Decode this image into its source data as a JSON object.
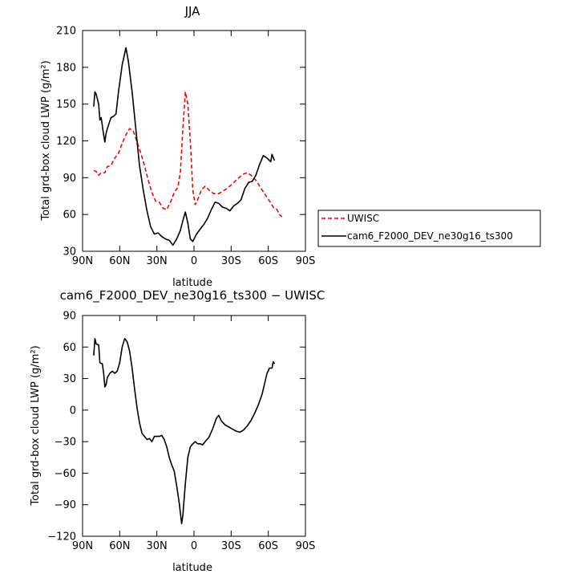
{
  "chart_data": [
    {
      "type": "line",
      "title": "JJA",
      "xlabel": "latitude",
      "ylabel": "Total grd-box cloud LWP (g/m²)",
      "xlim": [
        90,
        -90
      ],
      "ylim": [
        30,
        210
      ],
      "x_ticks": [
        90,
        60,
        30,
        0,
        -30,
        -60,
        -90
      ],
      "x_tick_labels": [
        "90N",
        "60N",
        "30N",
        "0",
        "30S",
        "60S",
        "90S"
      ],
      "y_ticks": [
        30,
        60,
        90,
        120,
        150,
        180,
        210
      ],
      "y_tick_labels": [
        "30",
        "60",
        "90",
        "120",
        "150",
        "180",
        "210"
      ],
      "legend_position": "right",
      "series": [
        {
          "name": "UWISC",
          "color": "#ff0000",
          "dash": "dashed",
          "points": [
            [
              81,
              96
            ],
            [
              79,
              95
            ],
            [
              77,
              92
            ],
            [
              75,
              94
            ],
            [
              72,
              94
            ],
            [
              70,
              99
            ],
            [
              67,
              100
            ],
            [
              64,
              106
            ],
            [
              61,
              110
            ],
            [
              58,
              118
            ],
            [
              55,
              125
            ],
            [
              52,
              130
            ],
            [
              49,
              128
            ],
            [
              46,
              119
            ],
            [
              43,
              110
            ],
            [
              40,
              100
            ],
            [
              37,
              88
            ],
            [
              34,
              78
            ],
            [
              31,
              71
            ],
            [
              28,
              70
            ],
            [
              25,
              65
            ],
            [
              22,
              64
            ],
            [
              19,
              70
            ],
            [
              16,
              78
            ],
            [
              13,
              82
            ],
            [
              11,
              95
            ],
            [
              9,
              130
            ],
            [
              7,
              160
            ],
            [
              5,
              150
            ],
            [
              3,
              120
            ],
            [
              1,
              80
            ],
            [
              -1,
              68
            ],
            [
              -3,
              72
            ],
            [
              -6,
              80
            ],
            [
              -9,
              83
            ],
            [
              -12,
              80
            ],
            [
              -16,
              77
            ],
            [
              -20,
              77
            ],
            [
              -25,
              80
            ],
            [
              -30,
              84
            ],
            [
              -35,
              89
            ],
            [
              -40,
              93
            ],
            [
              -43,
              94
            ],
            [
              -46,
              92
            ],
            [
              -50,
              88
            ],
            [
              -53,
              83
            ],
            [
              -57,
              77
            ],
            [
              -61,
              71
            ],
            [
              -64,
              66
            ],
            [
              -67,
              64
            ],
            [
              -69,
              60
            ],
            [
              -71,
              58
            ]
          ]
        },
        {
          "name": "cam6_F2000_DEV_ne30g16_ts300",
          "color": "#000000",
          "dash": "solid",
          "points": [
            [
              81,
              148
            ],
            [
              80,
              160
            ],
            [
              79,
              158
            ],
            [
              77,
              150
            ],
            [
              76,
              137
            ],
            [
              75,
              139
            ],
            [
              74,
              132
            ],
            [
              73,
              125
            ],
            [
              72,
              119
            ],
            [
              71,
              126
            ],
            [
              70,
              130
            ],
            [
              69,
              133
            ],
            [
              67,
              139
            ],
            [
              65,
              140
            ],
            [
              63,
              142
            ],
            [
              61,
              160
            ],
            [
              58,
              182
            ],
            [
              55,
              196
            ],
            [
              53,
              185
            ],
            [
              50,
              160
            ],
            [
              47,
              130
            ],
            [
              44,
              100
            ],
            [
              41,
              80
            ],
            [
              38,
              63
            ],
            [
              35,
              50
            ],
            [
              32,
              44
            ],
            [
              29,
              45
            ],
            [
              26,
              42
            ],
            [
              23,
              40
            ],
            [
              20,
              39
            ],
            [
              17,
              35
            ],
            [
              14,
              40
            ],
            [
              11,
              47
            ],
            [
              9,
              55
            ],
            [
              7,
              62
            ],
            [
              5,
              53
            ],
            [
              3,
              40
            ],
            [
              1,
              38
            ],
            [
              -2,
              44
            ],
            [
              -5,
              48
            ],
            [
              -8,
              52
            ],
            [
              -11,
              57
            ],
            [
              -14,
              64
            ],
            [
              -17,
              70
            ],
            [
              -20,
              69
            ],
            [
              -23,
              66
            ],
            [
              -26,
              65
            ],
            [
              -29,
              63
            ],
            [
              -32,
              67
            ],
            [
              -35,
              69
            ],
            [
              -38,
              72
            ],
            [
              -41,
              81
            ],
            [
              -44,
              86
            ],
            [
              -47,
              87
            ],
            [
              -50,
              92
            ],
            [
              -53,
              101
            ],
            [
              -56,
              108
            ],
            [
              -59,
              106
            ],
            [
              -62,
              103
            ],
            [
              -63,
              109
            ],
            [
              -65,
              104
            ]
          ]
        }
      ]
    },
    {
      "type": "line",
      "title": "cam6_F2000_DEV_ne30g16_ts300 − UWISC",
      "xlabel": "latitude",
      "ylabel": "Total grd-box cloud LWP (g/m²)",
      "xlim": [
        90,
        -90
      ],
      "ylim": [
        -120,
        90
      ],
      "x_ticks": [
        90,
        60,
        30,
        0,
        -30,
        -60,
        -90
      ],
      "x_tick_labels": [
        "90N",
        "60N",
        "30N",
        "0",
        "30S",
        "60S",
        "90S"
      ],
      "y_ticks": [
        -120,
        -90,
        -60,
        -30,
        0,
        30,
        60,
        90
      ],
      "y_tick_labels": [
        "−120",
        "−90",
        "−60",
        "−30",
        "0",
        "30",
        "60",
        "90"
      ],
      "series": [
        {
          "color": "#000000",
          "dash": "solid",
          "points": [
            [
              81,
              52
            ],
            [
              80,
              68
            ],
            [
              79,
              63
            ],
            [
              77,
              62
            ],
            [
              76,
              45
            ],
            [
              74,
              44
            ],
            [
              73,
              35
            ],
            [
              72,
              22
            ],
            [
              71,
              24
            ],
            [
              70,
              31
            ],
            [
              68,
              35
            ],
            [
              66,
              37
            ],
            [
              64,
              35
            ],
            [
              62,
              37
            ],
            [
              60,
              45
            ],
            [
              58,
              60
            ],
            [
              56,
              68
            ],
            [
              54,
              65
            ],
            [
              52,
              56
            ],
            [
              50,
              40
            ],
            [
              48,
              20
            ],
            [
              46,
              2
            ],
            [
              44,
              -12
            ],
            [
              42,
              -22
            ],
            [
              40,
              -25
            ],
            [
              38,
              -28
            ],
            [
              36,
              -27
            ],
            [
              34,
              -30
            ],
            [
              32,
              -25
            ],
            [
              30,
              -25
            ],
            [
              28,
              -25
            ],
            [
              26,
              -24
            ],
            [
              24,
              -28
            ],
            [
              22,
              -35
            ],
            [
              20,
              -45
            ],
            [
              18,
              -52
            ],
            [
              16,
              -58
            ],
            [
              14,
              -72
            ],
            [
              12,
              -88
            ],
            [
              10,
              -108
            ],
            [
              9,
              -100
            ],
            [
              7,
              -70
            ],
            [
              5,
              -45
            ],
            [
              3,
              -35
            ],
            [
              1,
              -32
            ],
            [
              -1,
              -30
            ],
            [
              -3,
              -32
            ],
            [
              -5,
              -32
            ],
            [
              -7,
              -33
            ],
            [
              -9,
              -30
            ],
            [
              -12,
              -26
            ],
            [
              -15,
              -18
            ],
            [
              -18,
              -8
            ],
            [
              -20,
              -5
            ],
            [
              -22,
              -10
            ],
            [
              -25,
              -14
            ],
            [
              -28,
              -16
            ],
            [
              -31,
              -18
            ],
            [
              -34,
              -20
            ],
            [
              -37,
              -21
            ],
            [
              -40,
              -19
            ],
            [
              -43,
              -15
            ],
            [
              -46,
              -10
            ],
            [
              -49,
              -3
            ],
            [
              -52,
              5
            ],
            [
              -55,
              15
            ],
            [
              -57,
              25
            ],
            [
              -59,
              35
            ],
            [
              -61,
              40
            ],
            [
              -63,
              40
            ],
            [
              -64,
              46
            ],
            [
              -65,
              44
            ]
          ]
        }
      ]
    }
  ]
}
